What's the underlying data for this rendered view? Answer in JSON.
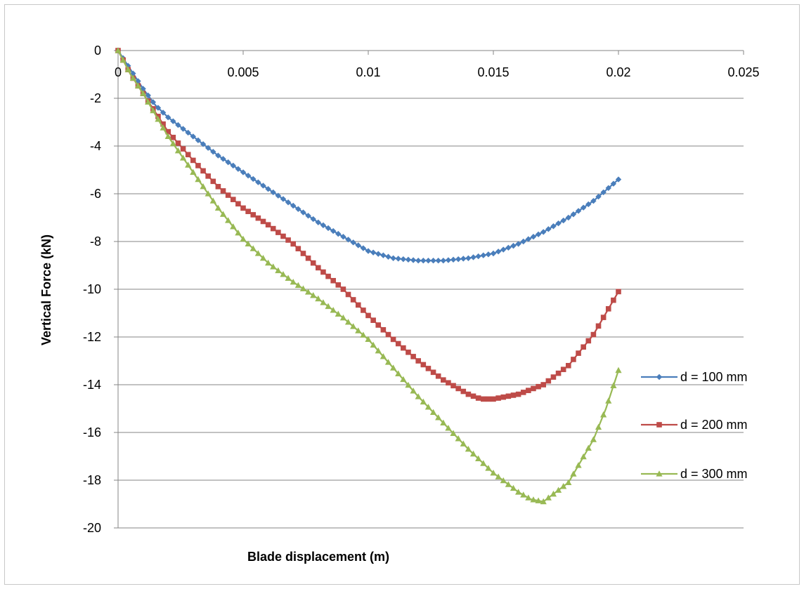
{
  "chart_data": {
    "type": "line",
    "xlabel": "Blade displacement (m)",
    "ylabel": "Vertical Force (kN)",
    "xlim": [
      0,
      0.025
    ],
    "ylim": [
      -20,
      0
    ],
    "x_ticks": [
      "0",
      "0.005",
      "0.01",
      "0.015",
      "0.02",
      "0.025"
    ],
    "y_ticks": [
      "0",
      "-2",
      "-4",
      "-6",
      "-8",
      "-10",
      "-12",
      "-14",
      "-16",
      "-18",
      "-20"
    ],
    "grid": "horizontal",
    "legend_position": "right",
    "series": [
      {
        "name": "d = 100 mm",
        "color": "#4a7ebb",
        "marker": "diamond",
        "x": [
          0,
          0.0005,
          0.001,
          0.0015,
          0.002,
          0.003,
          0.004,
          0.005,
          0.006,
          0.007,
          0.008,
          0.009,
          0.01,
          0.011,
          0.012,
          0.013,
          0.014,
          0.015,
          0.016,
          0.017,
          0.018,
          0.019,
          0.02
        ],
        "values": [
          0,
          -0.8,
          -1.6,
          -2.3,
          -2.8,
          -3.6,
          -4.4,
          -5.1,
          -5.8,
          -6.5,
          -7.2,
          -7.8,
          -8.4,
          -8.7,
          -8.8,
          -8.8,
          -8.7,
          -8.5,
          -8.1,
          -7.6,
          -7.0,
          -6.3,
          -5.4
        ]
      },
      {
        "name": "d = 200 mm",
        "color": "#be4b48",
        "marker": "square",
        "x": [
          0,
          0.0005,
          0.001,
          0.0015,
          0.002,
          0.003,
          0.004,
          0.005,
          0.006,
          0.007,
          0.008,
          0.009,
          0.01,
          0.011,
          0.012,
          0.013,
          0.014,
          0.0145,
          0.015,
          0.016,
          0.017,
          0.018,
          0.019,
          0.02
        ],
        "values": [
          0,
          -1.0,
          -1.8,
          -2.6,
          -3.4,
          -4.6,
          -5.7,
          -6.6,
          -7.3,
          -8.1,
          -9.1,
          -10.0,
          -11.1,
          -12.1,
          -13.0,
          -13.8,
          -14.4,
          -14.6,
          -14.6,
          -14.4,
          -14.0,
          -13.2,
          -11.9,
          -10.1
        ]
      },
      {
        "name": "d = 300 mm",
        "color": "#98b954",
        "marker": "triangle",
        "x": [
          0,
          0.0005,
          0.001,
          0.0015,
          0.002,
          0.003,
          0.004,
          0.005,
          0.006,
          0.007,
          0.008,
          0.009,
          0.01,
          0.011,
          0.012,
          0.013,
          0.014,
          0.015,
          0.016,
          0.0165,
          0.017,
          0.018,
          0.019,
          0.0195,
          0.02
        ],
        "values": [
          0,
          -1.0,
          -1.8,
          -2.7,
          -3.6,
          -5.1,
          -6.6,
          -7.9,
          -8.9,
          -9.7,
          -10.4,
          -11.2,
          -12.1,
          -13.3,
          -14.5,
          -15.6,
          -16.7,
          -17.7,
          -18.5,
          -18.8,
          -18.9,
          -18.1,
          -16.3,
          -15.0,
          -13.4
        ]
      }
    ]
  }
}
